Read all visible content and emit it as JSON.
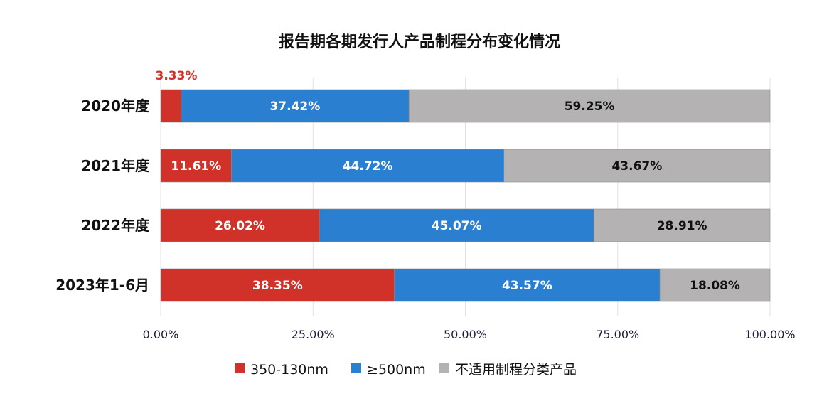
{
  "chart_data": {
    "type": "bar",
    "orientation": "horizontal",
    "stacked": true,
    "title": "报告期各期发行人产品制程分布变化情况",
    "categories": [
      "2020年度",
      "2021年度",
      "2022年度",
      "2023年1-6月"
    ],
    "series": [
      {
        "name": "350-130nm",
        "color": "#d0322a",
        "values": [
          3.33,
          11.61,
          26.02,
          38.35
        ],
        "labels": [
          "3.33%",
          "11.61%",
          "26.02%",
          "38.35%"
        ]
      },
      {
        "name": "≥500nm",
        "color": "#2a7fd0",
        "values": [
          37.42,
          44.72,
          45.07,
          43.57
        ],
        "labels": [
          "37.42%",
          "44.72%",
          "45.07%",
          "43.57%"
        ]
      },
      {
        "name": "不适用制程分类产品",
        "color": "#b4b2b3",
        "values": [
          59.25,
          43.67,
          28.91,
          18.08
        ],
        "labels": [
          "59.25%",
          "43.67%",
          "28.91%",
          "18.08%"
        ]
      }
    ],
    "xlim": [
      0,
      100
    ],
    "xticks": [
      0,
      25,
      50,
      75,
      100
    ],
    "xtick_labels": [
      "0.00%",
      "25.00%",
      "50.00%",
      "75.00%",
      "100.00%"
    ],
    "grid": true,
    "legend": "bottom"
  }
}
